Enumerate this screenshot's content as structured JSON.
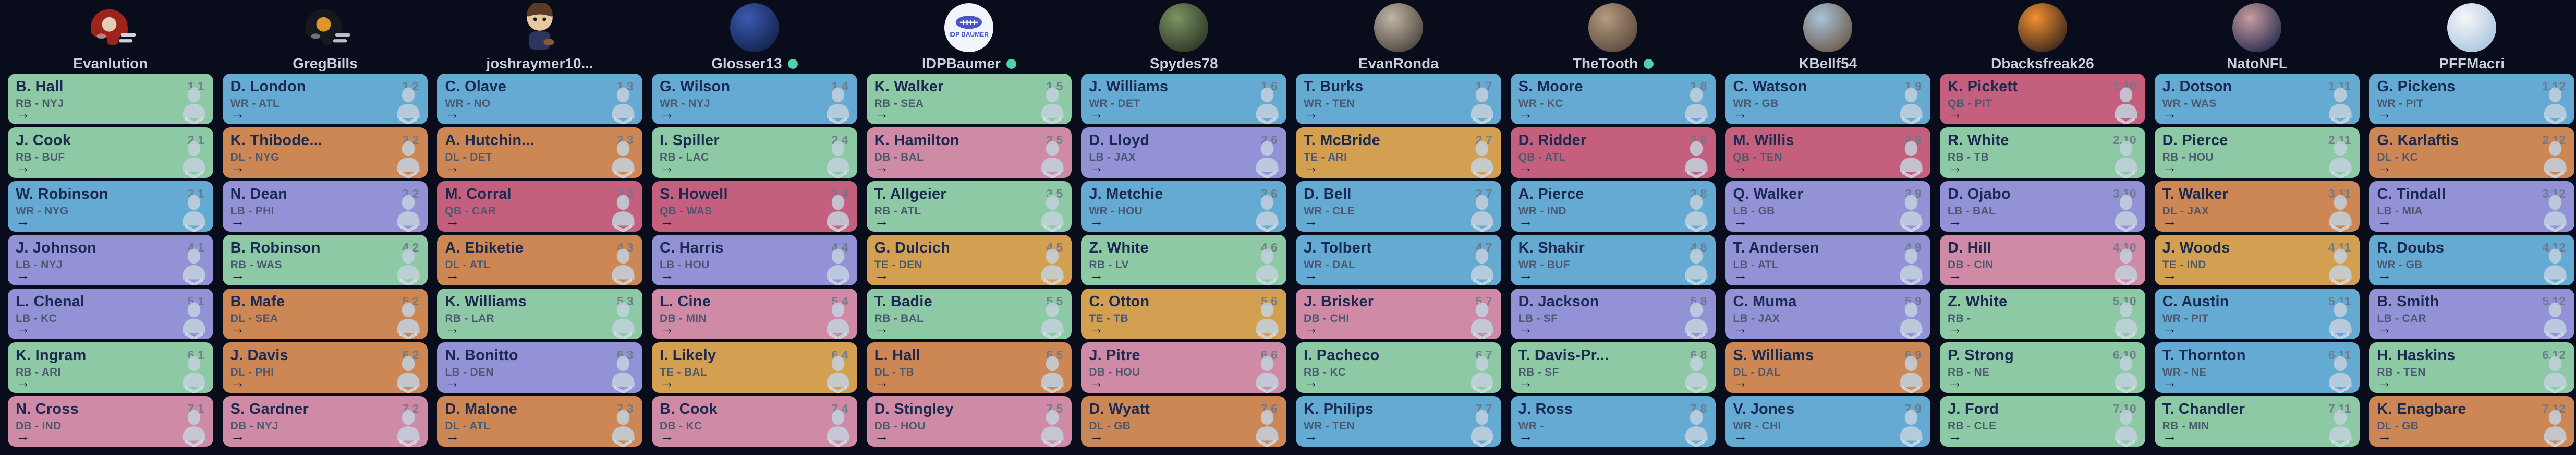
{
  "colors": {
    "background": "#090c1b",
    "card_text": "#1c2a52",
    "secondary_text": "#4b5870",
    "pick_number": "#6e7787",
    "arrow": "#13203b",
    "username": "#c9d0dc",
    "online_dot": "#4fd2a6",
    "bust_icon": "#c4d2de",
    "bust_chevron": "#dbe5ee"
  },
  "position_colors": {
    "QB": "#c4607e",
    "RB": "#8cc9a4",
    "WR": "#64aad2",
    "TE": "#d3a052",
    "LB": "#9392d6",
    "DL": "#cd8754",
    "DB": "#cf8aa5"
  },
  "icons": {
    "arrow": "→",
    "player_placeholder": "player-bust-silhouette"
  },
  "teams": [
    {
      "name": "Evanlution",
      "online": false,
      "avatar": {
        "type": "helmet",
        "c1": "#9e231b",
        "c2": "#e8dcc4",
        "accent": "#ccd3db"
      },
      "picks": [
        {
          "player": "B. Hall",
          "pos": "RB",
          "pos_team": "RB - NYJ",
          "pick": "1.1"
        },
        {
          "player": "J. Cook",
          "pos": "RB",
          "pos_team": "RB - BUF",
          "pick": "2.1"
        },
        {
          "player": "W. Robinson",
          "pos": "WR",
          "pos_team": "WR - NYG",
          "pick": "3.1"
        },
        {
          "player": "J. Johnson",
          "pos": "LB",
          "pos_team": "LB - NYJ",
          "pick": "4.1"
        },
        {
          "player": "L. Chenal",
          "pos": "LB",
          "pos_team": "LB - KC",
          "pick": "5.1"
        },
        {
          "player": "K. Ingram",
          "pos": "RB",
          "pos_team": "RB - ARI",
          "pick": "6.1"
        },
        {
          "player": "N. Cross",
          "pos": "DB",
          "pos_team": "DB - IND",
          "pick": "7.1"
        }
      ]
    },
    {
      "name": "GregBills",
      "online": false,
      "avatar": {
        "type": "helmet",
        "c1": "#17181d",
        "c2": "#f0a22e",
        "accent": "#b9c0c8"
      },
      "picks": [
        {
          "player": "D. London",
          "pos": "WR",
          "pos_team": "WR - ATL",
          "pick": "1.2"
        },
        {
          "player": "K. Thibode...",
          "pos": "DL",
          "pos_team": "DL - NYG",
          "pick": "2.2"
        },
        {
          "player": "N. Dean",
          "pos": "LB",
          "pos_team": "LB - PHI",
          "pick": "3.2"
        },
        {
          "player": "B. Robinson",
          "pos": "RB",
          "pos_team": "RB - WAS",
          "pick": "4.2"
        },
        {
          "player": "B. Mafe",
          "pos": "DL",
          "pos_team": "DL - SEA",
          "pick": "5.2"
        },
        {
          "player": "J. Davis",
          "pos": "DL",
          "pos_team": "DL - PHI",
          "pick": "6.2"
        },
        {
          "player": "S. Gardner",
          "pos": "DB",
          "pos_team": "DB - NYJ",
          "pick": "7.2"
        }
      ]
    },
    {
      "name": "joshraymer10...",
      "online": false,
      "avatar": {
        "type": "figure",
        "c1": "#e7c9a1",
        "c2": "#2b3560",
        "accent": "#5a3b23"
      },
      "picks": [
        {
          "player": "C. Olave",
          "pos": "WR",
          "pos_team": "WR - NO",
          "pick": "1.3"
        },
        {
          "player": "A. Hutchin...",
          "pos": "DL",
          "pos_team": "DL - DET",
          "pick": "2.3"
        },
        {
          "player": "M. Corral",
          "pos": "QB",
          "pos_team": "QB - CAR",
          "pick": "3.3"
        },
        {
          "player": "A. Ebiketie",
          "pos": "DL",
          "pos_team": "DL - ATL",
          "pick": "4.3"
        },
        {
          "player": "K. Williams",
          "pos": "RB",
          "pos_team": "RB - LAR",
          "pick": "5.3"
        },
        {
          "player": "N. Bonitto",
          "pos": "LB",
          "pos_team": "LB - DEN",
          "pick": "6.3"
        },
        {
          "player": "D. Malone",
          "pos": "DL",
          "pos_team": "DL - ATL",
          "pick": "7.3"
        }
      ]
    },
    {
      "name": "Glosser13",
      "online": true,
      "avatar": {
        "type": "photo",
        "c1": "#3b5bb0",
        "c2": "#11204a"
      },
      "picks": [
        {
          "player": "G. Wilson",
          "pos": "WR",
          "pos_team": "WR - NYJ",
          "pick": "1.4"
        },
        {
          "player": "I. Spiller",
          "pos": "RB",
          "pos_team": "RB - LAC",
          "pick": "2.4"
        },
        {
          "player": "S. Howell",
          "pos": "QB",
          "pos_team": "QB - WAS",
          "pick": "3.4"
        },
        {
          "player": "C. Harris",
          "pos": "LB",
          "pos_team": "LB - HOU",
          "pick": "4.4"
        },
        {
          "player": "L. Cine",
          "pos": "DB",
          "pos_team": "DB - MIN",
          "pick": "5.4"
        },
        {
          "player": "I. Likely",
          "pos": "TE",
          "pos_team": "TE - BAL",
          "pick": "6.4"
        },
        {
          "player": "B. Cook",
          "pos": "DB",
          "pos_team": "DB - KC",
          "pick": "7.4"
        }
      ]
    },
    {
      "name": "IDPBaumer",
      "online": true,
      "avatar": {
        "type": "logo",
        "c1": "#f2f6fb",
        "c2": "#4a55c6",
        "label": "IDP BAUMER"
      },
      "picks": [
        {
          "player": "K. Walker",
          "pos": "RB",
          "pos_team": "RB - SEA",
          "pick": "1.5"
        },
        {
          "player": "K. Hamilton",
          "pos": "DB",
          "pos_team": "DB - BAL",
          "pick": "2.5"
        },
        {
          "player": "T. Allgeier",
          "pos": "RB",
          "pos_team": "RB - ATL",
          "pick": "3.5"
        },
        {
          "player": "G. Dulcich",
          "pos": "TE",
          "pos_team": "TE - DEN",
          "pick": "4.5"
        },
        {
          "player": "T. Badie",
          "pos": "RB",
          "pos_team": "RB - BAL",
          "pick": "5.5"
        },
        {
          "player": "L. Hall",
          "pos": "DL",
          "pos_team": "DL - TB",
          "pick": "6.5"
        },
        {
          "player": "D. Stingley",
          "pos": "DB",
          "pos_team": "DB - HOU",
          "pick": "7.5"
        }
      ]
    },
    {
      "name": "Spydes78",
      "online": false,
      "avatar": {
        "type": "photo",
        "c1": "#7c9464",
        "c2": "#2a3322"
      },
      "picks": [
        {
          "player": "J. Williams",
          "pos": "WR",
          "pos_team": "WR - DET",
          "pick": "1.6"
        },
        {
          "player": "D. Lloyd",
          "pos": "LB",
          "pos_team": "LB - JAX",
          "pick": "2.6"
        },
        {
          "player": "J. Metchie",
          "pos": "WR",
          "pos_team": "WR - HOU",
          "pick": "3.6"
        },
        {
          "player": "Z. White",
          "pos": "RB",
          "pos_team": "RB - LV",
          "pick": "4.6"
        },
        {
          "player": "C. Otton",
          "pos": "TE",
          "pos_team": "TE - TB",
          "pick": "5.6"
        },
        {
          "player": "J. Pitre",
          "pos": "DB",
          "pos_team": "DB - HOU",
          "pick": "6.6"
        },
        {
          "player": "D. Wyatt",
          "pos": "DL",
          "pos_team": "DL - GB",
          "pick": "7.6"
        }
      ]
    },
    {
      "name": "EvanRonda",
      "online": false,
      "avatar": {
        "type": "photo",
        "c1": "#bfb6a6",
        "c2": "#4a423a"
      },
      "picks": [
        {
          "player": "T. Burks",
          "pos": "WR",
          "pos_team": "WR - TEN",
          "pick": "1.7"
        },
        {
          "player": "T. McBride",
          "pos": "TE",
          "pos_team": "TE - ARI",
          "pick": "2.7"
        },
        {
          "player": "D. Bell",
          "pos": "WR",
          "pos_team": "WR - CLE",
          "pick": "3.7"
        },
        {
          "player": "J. Tolbert",
          "pos": "WR",
          "pos_team": "WR - DAL",
          "pick": "4.7"
        },
        {
          "player": "J. Brisker",
          "pos": "DB",
          "pos_team": "DB - CHI",
          "pick": "5.7"
        },
        {
          "player": "I. Pacheco",
          "pos": "RB",
          "pos_team": "RB - KC",
          "pick": "6.7"
        },
        {
          "player": "K. Philips",
          "pos": "WR",
          "pos_team": "WR - TEN",
          "pick": "7.7"
        }
      ]
    },
    {
      "name": "TheTooth",
      "online": true,
      "avatar": {
        "type": "photo",
        "c1": "#b59a7e",
        "c2": "#59483c"
      },
      "picks": [
        {
          "player": "S. Moore",
          "pos": "WR",
          "pos_team": "WR - KC",
          "pick": "1.8"
        },
        {
          "player": "D. Ridder",
          "pos": "QB",
          "pos_team": "QB - ATL",
          "pick": "2.8"
        },
        {
          "player": "A. Pierce",
          "pos": "WR",
          "pos_team": "WR - IND",
          "pick": "3.8"
        },
        {
          "player": "K. Shakir",
          "pos": "WR",
          "pos_team": "WR - BUF",
          "pick": "4.8"
        },
        {
          "player": "D. Jackson",
          "pos": "LB",
          "pos_team": "LB - SF",
          "pick": "5.8"
        },
        {
          "player": "T. Davis-Pr...",
          "pos": "RB",
          "pos_team": "RB - SF",
          "pick": "6.8"
        },
        {
          "player": "J. Ross",
          "pos": "WR",
          "pos_team": "WR -",
          "pick": "7.8"
        }
      ]
    },
    {
      "name": "KBellf54",
      "online": false,
      "avatar": {
        "type": "photo",
        "c1": "#a9c3d8",
        "c2": "#6b5748"
      },
      "picks": [
        {
          "player": "C. Watson",
          "pos": "WR",
          "pos_team": "WR - GB",
          "pick": "1.9"
        },
        {
          "player": "M. Willis",
          "pos": "QB",
          "pos_team": "QB - TEN",
          "pick": "2.9"
        },
        {
          "player": "Q. Walker",
          "pos": "LB",
          "pos_team": "LB - GB",
          "pick": "3.9"
        },
        {
          "player": "T. Andersen",
          "pos": "LB",
          "pos_team": "LB - ATL",
          "pick": "4.9"
        },
        {
          "player": "C. Muma",
          "pos": "LB",
          "pos_team": "LB - JAX",
          "pick": "5.9"
        },
        {
          "player": "S. Williams",
          "pos": "DL",
          "pos_team": "DL - DAL",
          "pick": "6.9"
        },
        {
          "player": "V. Jones",
          "pos": "WR",
          "pos_team": "WR - CHI",
          "pick": "7.9"
        }
      ]
    },
    {
      "name": "Dbacksfreak26",
      "online": false,
      "avatar": {
        "type": "photo",
        "c1": "#f2902f",
        "c2": "#33241c"
      },
      "picks": [
        {
          "player": "K. Pickett",
          "pos": "QB",
          "pos_team": "QB - PIT",
          "pick": "1.10"
        },
        {
          "player": "R. White",
          "pos": "RB",
          "pos_team": "RB - TB",
          "pick": "2.10"
        },
        {
          "player": "D. Ojabo",
          "pos": "LB",
          "pos_team": "LB - BAL",
          "pick": "3.10"
        },
        {
          "player": "D. Hill",
          "pos": "DB",
          "pos_team": "DB - CIN",
          "pick": "4.10"
        },
        {
          "player": "Z. White",
          "pos": "RB",
          "pos_team": "RB -",
          "pick": "5.10"
        },
        {
          "player": "P. Strong",
          "pos": "RB",
          "pos_team": "RB - NE",
          "pick": "6.10"
        },
        {
          "player": "J. Ford",
          "pos": "RB",
          "pos_team": "RB - CLE",
          "pick": "7.10"
        }
      ]
    },
    {
      "name": "NatoNFL",
      "online": false,
      "avatar": {
        "type": "photo",
        "c1": "#c99ba0",
        "c2": "#232a4e"
      },
      "picks": [
        {
          "player": "J. Dotson",
          "pos": "WR",
          "pos_team": "WR - WAS",
          "pick": "1.11"
        },
        {
          "player": "D. Pierce",
          "pos": "RB",
          "pos_team": "RB - HOU",
          "pick": "2.11"
        },
        {
          "player": "T. Walker",
          "pos": "DL",
          "pos_team": "DL - JAX",
          "pick": "3.11"
        },
        {
          "player": "J. Woods",
          "pos": "TE",
          "pos_team": "TE - IND",
          "pick": "4.11"
        },
        {
          "player": "C. Austin",
          "pos": "WR",
          "pos_team": "WR - PIT",
          "pick": "5.11"
        },
        {
          "player": "T. Thornton",
          "pos": "WR",
          "pos_team": "WR - NE",
          "pick": "6.11"
        },
        {
          "player": "T. Chandler",
          "pos": "RB",
          "pos_team": "RB - MIN",
          "pick": "7.11"
        }
      ]
    },
    {
      "name": "PFFMacri",
      "online": false,
      "avatar": {
        "type": "photo",
        "c1": "#f5f7f9",
        "c2": "#a8c4de"
      },
      "picks": [
        {
          "player": "G. Pickens",
          "pos": "WR",
          "pos_team": "WR - PIT",
          "pick": "1.12"
        },
        {
          "player": "G. Karlaftis",
          "pos": "DL",
          "pos_team": "DL - KC",
          "pick": "2.12"
        },
        {
          "player": "C. Tindall",
          "pos": "LB",
          "pos_team": "LB - MIA",
          "pick": "3.12"
        },
        {
          "player": "R. Doubs",
          "pos": "WR",
          "pos_team": "WR - GB",
          "pick": "4.12"
        },
        {
          "player": "B. Smith",
          "pos": "LB",
          "pos_team": "LB - CAR",
          "pick": "5.12"
        },
        {
          "player": "H. Haskins",
          "pos": "RB",
          "pos_team": "RB - TEN",
          "pick": "6.12"
        },
        {
          "player": "K. Enagbare",
          "pos": "DL",
          "pos_team": "DL - GB",
          "pick": "7.12"
        }
      ]
    }
  ]
}
